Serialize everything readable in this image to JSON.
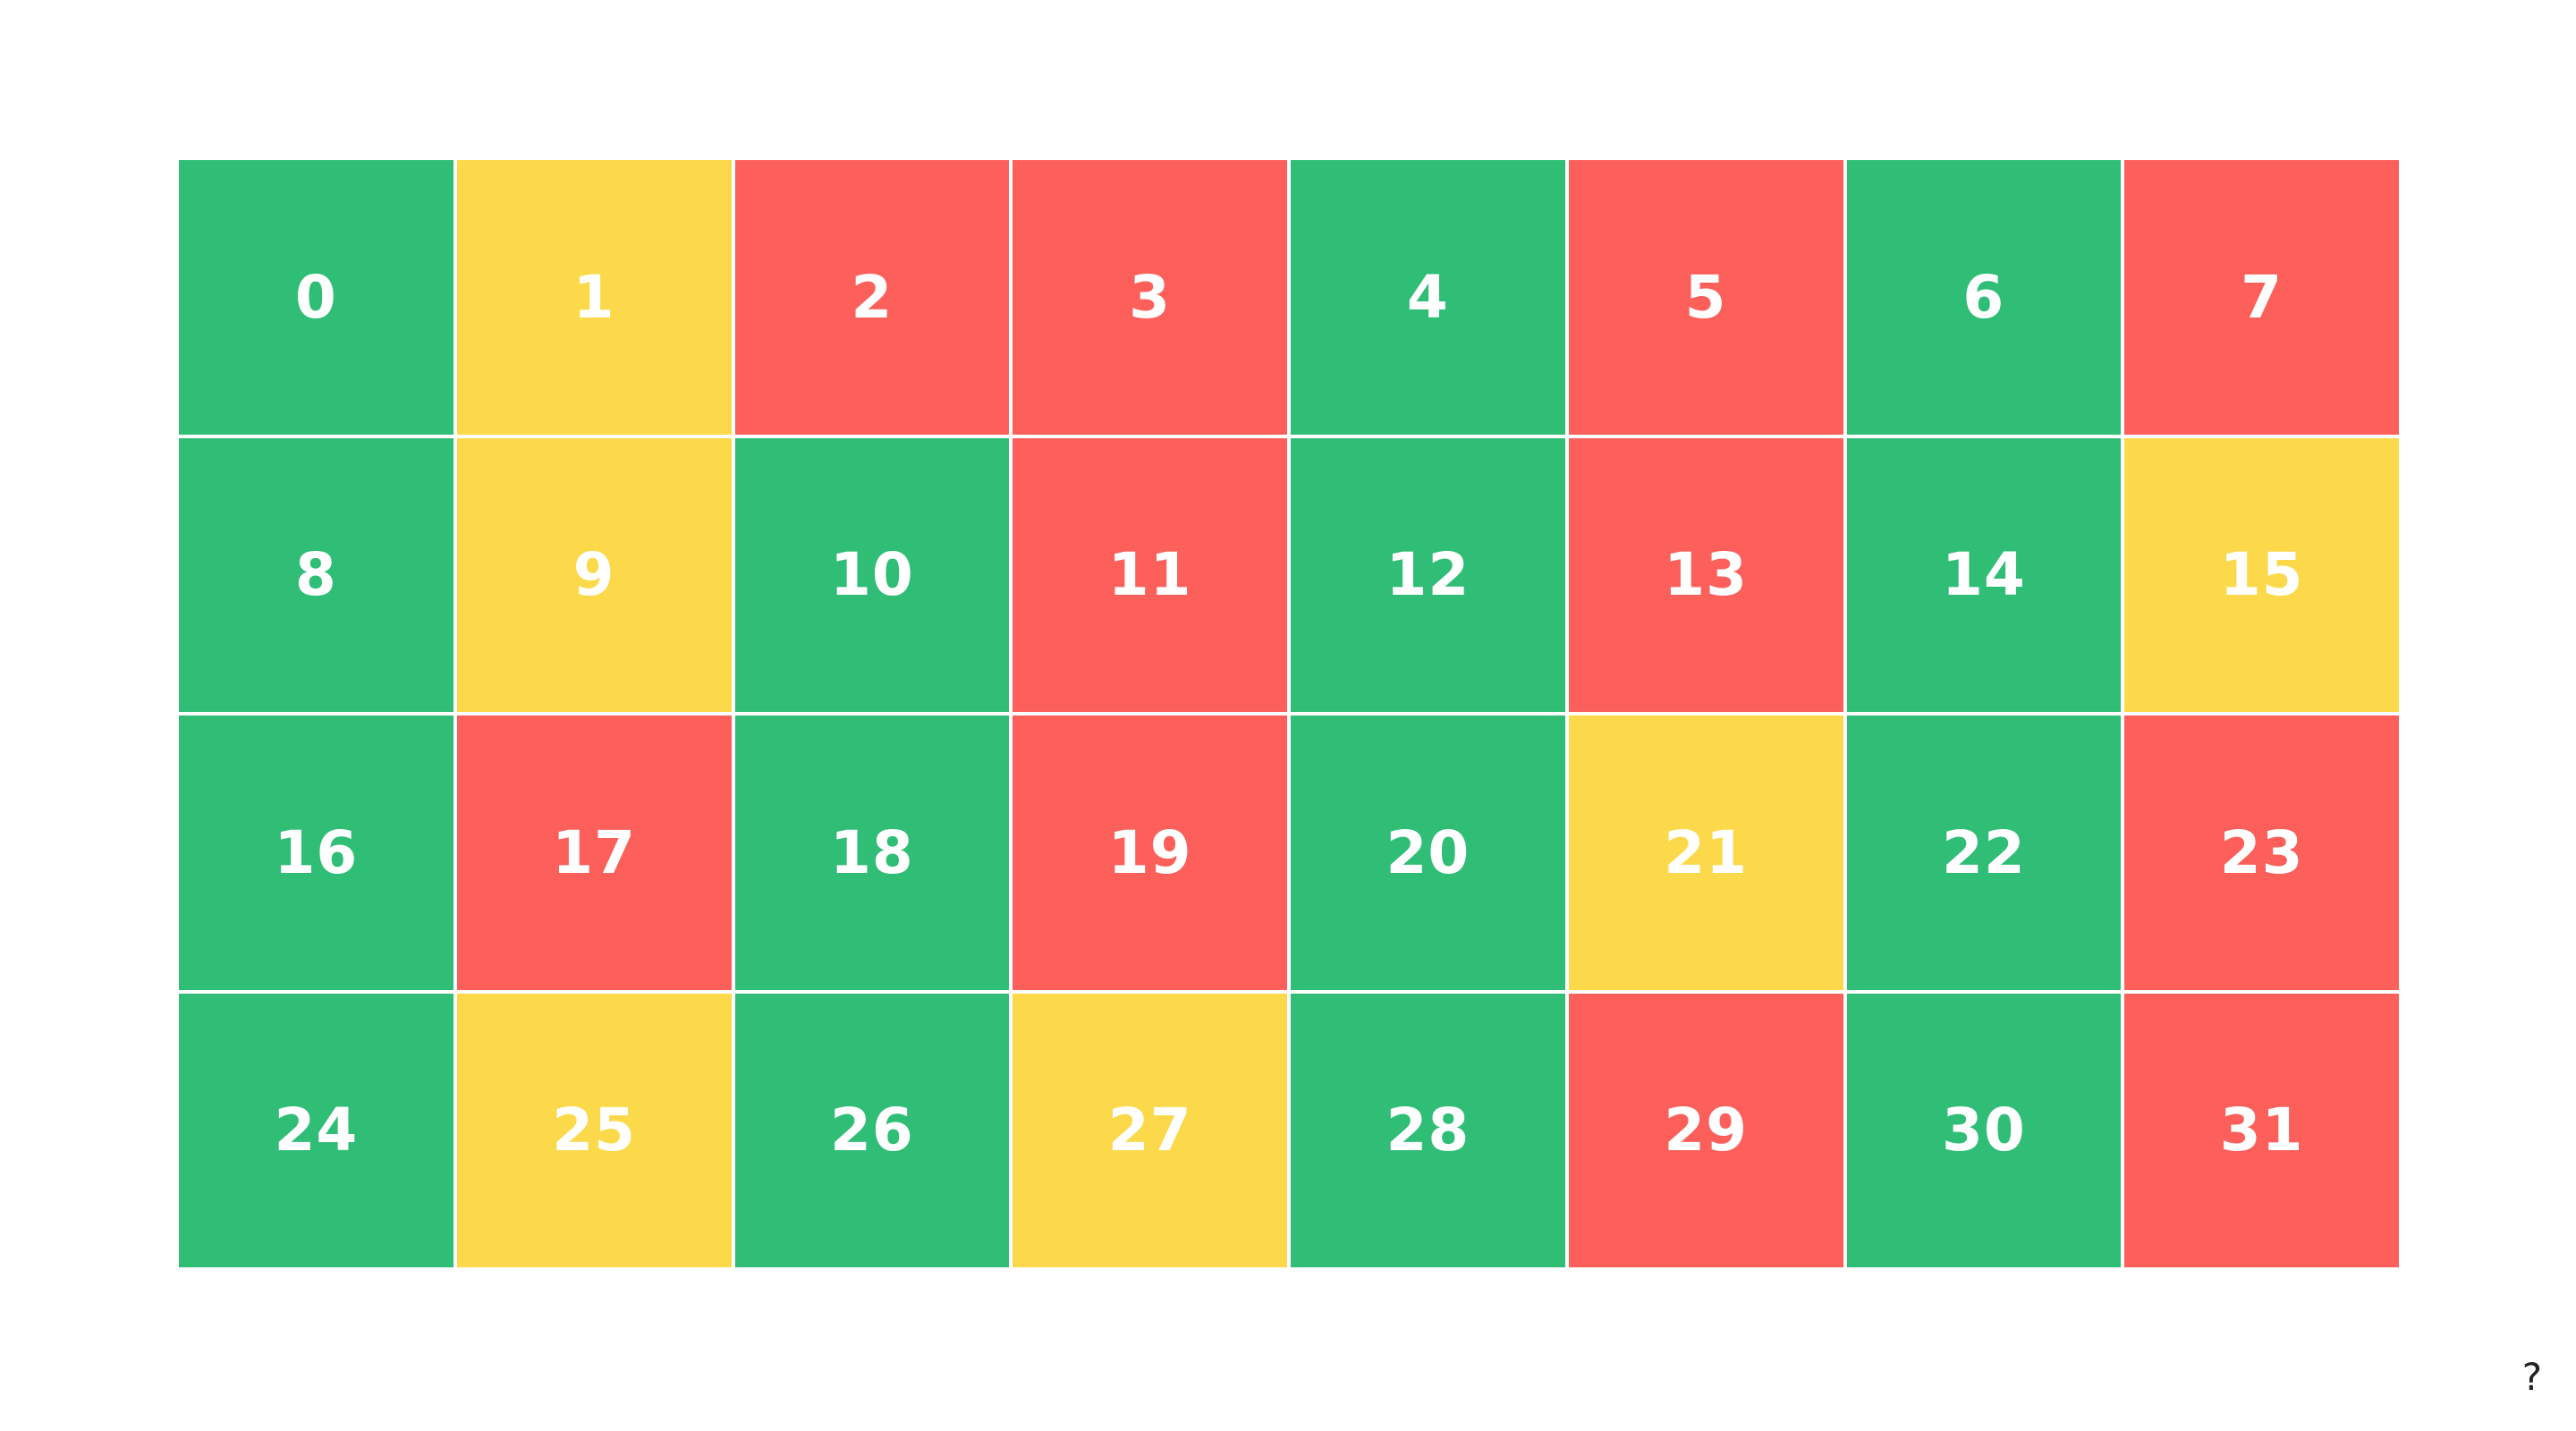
{
  "colors": {
    "green": "#30be77",
    "yellow": "#fcd94b",
    "red": "#fd5f5b",
    "text": "#ffffff",
    "background": "#ffffff"
  },
  "cells": [
    {
      "label": "0",
      "color": "green"
    },
    {
      "label": "1",
      "color": "yellow"
    },
    {
      "label": "2",
      "color": "red"
    },
    {
      "label": "3",
      "color": "red"
    },
    {
      "label": "4",
      "color": "green"
    },
    {
      "label": "5",
      "color": "red"
    },
    {
      "label": "6",
      "color": "green"
    },
    {
      "label": "7",
      "color": "red"
    },
    {
      "label": "8",
      "color": "green"
    },
    {
      "label": "9",
      "color": "yellow"
    },
    {
      "label": "10",
      "color": "green"
    },
    {
      "label": "11",
      "color": "red"
    },
    {
      "label": "12",
      "color": "green"
    },
    {
      "label": "13",
      "color": "red"
    },
    {
      "label": "14",
      "color": "green"
    },
    {
      "label": "15",
      "color": "yellow"
    },
    {
      "label": "16",
      "color": "green"
    },
    {
      "label": "17",
      "color": "red"
    },
    {
      "label": "18",
      "color": "green"
    },
    {
      "label": "19",
      "color": "red"
    },
    {
      "label": "20",
      "color": "green"
    },
    {
      "label": "21",
      "color": "yellow"
    },
    {
      "label": "22",
      "color": "green"
    },
    {
      "label": "23",
      "color": "red"
    },
    {
      "label": "24",
      "color": "green"
    },
    {
      "label": "25",
      "color": "yellow"
    },
    {
      "label": "26",
      "color": "green"
    },
    {
      "label": "27",
      "color": "yellow"
    },
    {
      "label": "28",
      "color": "green"
    },
    {
      "label": "29",
      "color": "red"
    },
    {
      "label": "30",
      "color": "green"
    },
    {
      "label": "31",
      "color": "red"
    }
  ],
  "help_label": "?"
}
